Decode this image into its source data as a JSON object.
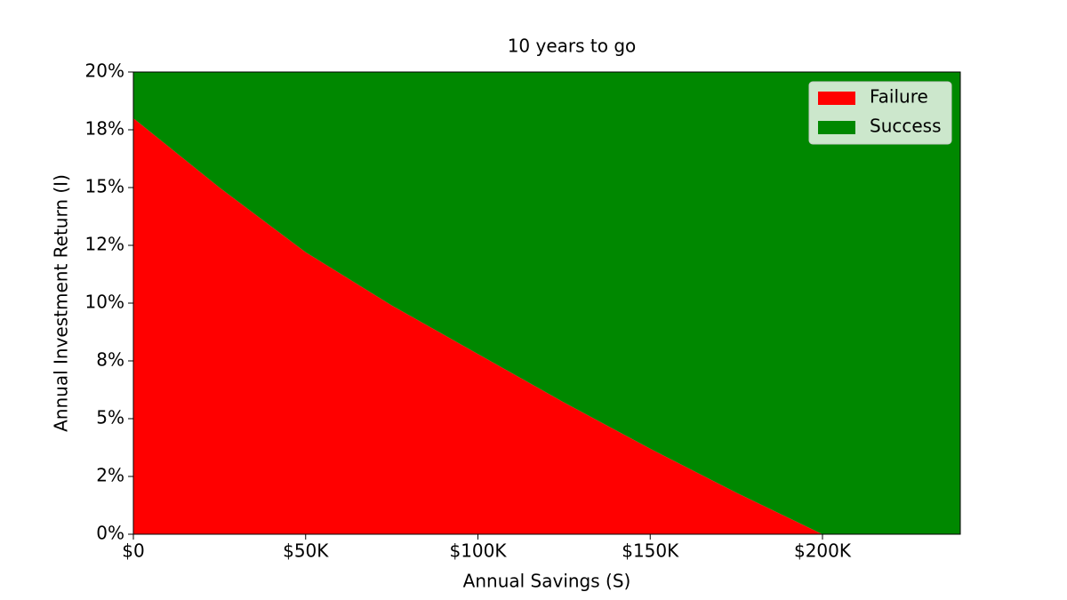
{
  "chart_data": {
    "type": "stacked-area",
    "title": "10 years to go",
    "xlabel": "Annual Savings (S)",
    "ylabel": "Annual Investment Return (I)",
    "x": [
      0,
      25000,
      50000,
      75000,
      100000,
      125000,
      150000,
      175000,
      200000,
      225000,
      240000
    ],
    "series": [
      {
        "name": "Failure",
        "color": "#ff0000",
        "values": [
          18,
          15.0,
          12.2,
          9.9,
          7.8,
          5.7,
          3.7,
          1.8,
          0,
          0,
          0
        ]
      },
      {
        "name": "Success",
        "color": "#008800",
        "values": [
          2,
          5.0,
          7.8,
          10.1,
          12.2,
          14.3,
          16.3,
          18.2,
          20,
          20,
          20
        ]
      }
    ],
    "xlim": [
      0,
      240000
    ],
    "xticks": [
      {
        "value": 0,
        "label": "$0"
      },
      {
        "value": 50000,
        "label": "$50K"
      },
      {
        "value": 100000,
        "label": "$100K"
      },
      {
        "value": 150000,
        "label": "$150K"
      },
      {
        "value": 200000,
        "label": "$200K"
      }
    ],
    "ylim": [
      0,
      20
    ],
    "yticks": [
      {
        "value": 0,
        "label": "0%"
      },
      {
        "value": 2.5,
        "label": "2%"
      },
      {
        "value": 5,
        "label": "5%"
      },
      {
        "value": 7.5,
        "label": "8%"
      },
      {
        "value": 10,
        "label": "10%"
      },
      {
        "value": 12.5,
        "label": "12%"
      },
      {
        "value": 15,
        "label": "15%"
      },
      {
        "value": 17.5,
        "label": "18%"
      },
      {
        "value": 20,
        "label": "20%"
      }
    ],
    "legend": "upper right"
  }
}
